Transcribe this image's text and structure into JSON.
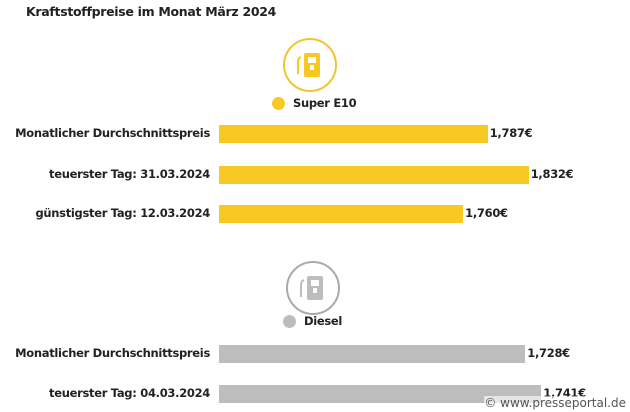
{
  "title": "Kraftstoffpreise im Monat März 2024",
  "watermark": "© www.presseportal.de",
  "chart_data": {
    "type": "bar",
    "title": "Kraftstoffpreise im Monat März 2024",
    "orientation": "horizontal",
    "groups": [
      {
        "name": "Super E10",
        "color": "#f9c923",
        "icon": "fuel-pump-icon",
        "categories": [
          "Monatlicher Durchschnittspreis",
          "teuerster Tag: 31.03.2024",
          "günstigster Tag: 12.03.2024"
        ],
        "values": [
          1.787,
          1.832,
          1.76
        ],
        "value_labels": [
          "1,787€",
          "1,832€",
          "1,760€"
        ]
      },
      {
        "name": "Diesel",
        "color": "#bdbdbd",
        "icon": "fuel-pump-icon",
        "categories": [
          "Monatlicher Durchschnittspreis",
          "teuerster Tag: 04.03.2024"
        ],
        "values": [
          1.728,
          1.741
        ],
        "value_labels": [
          "1,728€",
          "1,741€"
        ]
      }
    ]
  }
}
